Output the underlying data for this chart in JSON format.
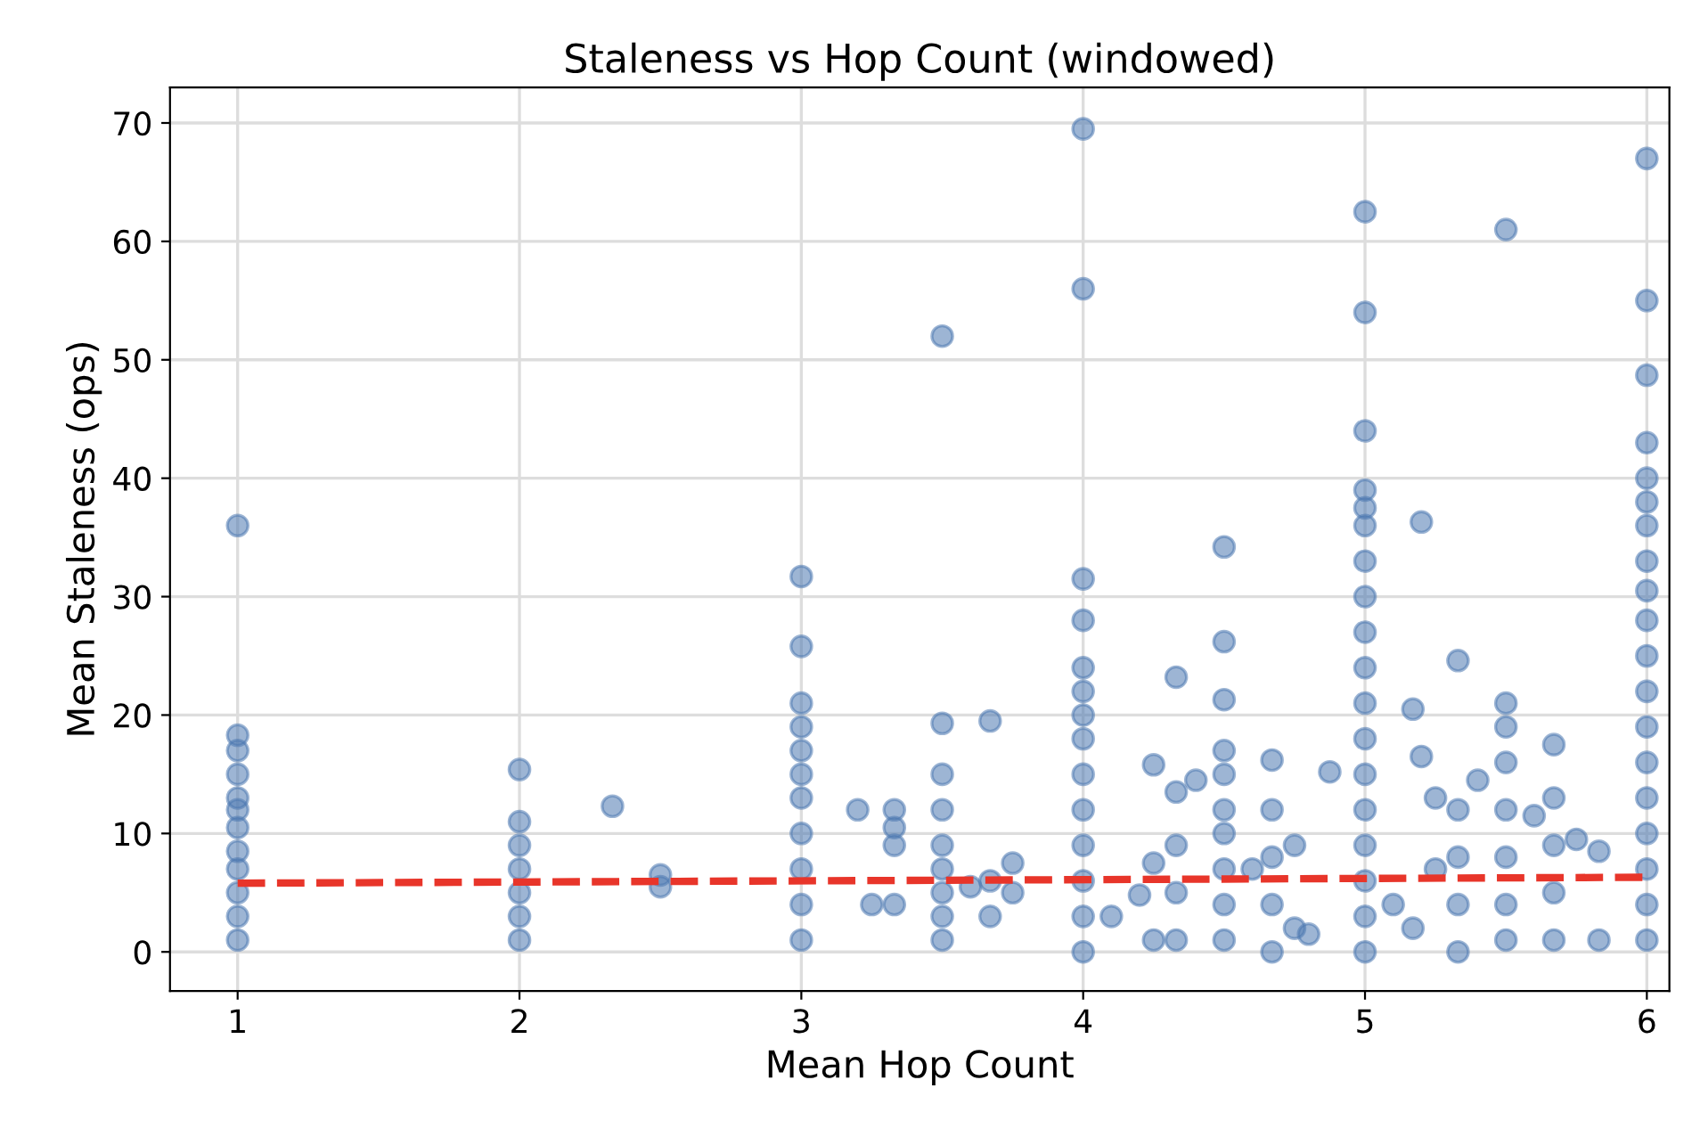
{
  "chart_data": {
    "type": "scatter",
    "title": "Staleness vs Hop Count (windowed)",
    "xlabel": "Mean Hop Count",
    "ylabel": "Mean Staleness (ops)",
    "xlim": [
      0.76,
      6.08
    ],
    "ylim": [
      -3.3,
      73
    ],
    "xticks": [
      1,
      2,
      3,
      4,
      5,
      6
    ],
    "yticks": [
      0,
      10,
      20,
      30,
      40,
      50,
      60,
      70
    ],
    "grid": true,
    "marker": "circle",
    "series": [
      {
        "color": "#4c78b0",
        "x": [
          1,
          1,
          1,
          1,
          1,
          1,
          1,
          1,
          1,
          1,
          1,
          1,
          2,
          2,
          2,
          2,
          2,
          2,
          2,
          2.33,
          2.5,
          2.5,
          3,
          3,
          3,
          3,
          3,
          3,
          3,
          3,
          3,
          3,
          3,
          3.2,
          3.25,
          3.33,
          3.33,
          3.33,
          3.33,
          3.5,
          3.5,
          3.5,
          3.5,
          3.5,
          3.5,
          3.5,
          3.5,
          3.5,
          3.6,
          3.67,
          3.67,
          3.67,
          3.75,
          3.75,
          4,
          4,
          4,
          4,
          4,
          4,
          4,
          4,
          4,
          4,
          4,
          4,
          4,
          4,
          4.1,
          4.2,
          4.25,
          4.25,
          4.25,
          4.33,
          4.33,
          4.33,
          4.33,
          4.33,
          4.4,
          4.5,
          4.5,
          4.5,
          4.5,
          4.5,
          4.5,
          4.5,
          4.5,
          4.5,
          4.5,
          4.6,
          4.67,
          4.67,
          4.67,
          4.67,
          4.67,
          4.75,
          4.75,
          4.8,
          4.875,
          5,
          5,
          5,
          5,
          5,
          5,
          5,
          5,
          5,
          5,
          5,
          5,
          5,
          5,
          5,
          5,
          5,
          5,
          5.1,
          5.17,
          5.17,
          5.2,
          5.2,
          5.25,
          5.25,
          5.33,
          5.33,
          5.33,
          5.33,
          5.33,
          5.4,
          5.5,
          5.5,
          5.5,
          5.5,
          5.5,
          5.5,
          5.5,
          5.5,
          5.6,
          5.67,
          5.67,
          5.67,
          5.67,
          5.67,
          5.75,
          5.83,
          5.83,
          6,
          6,
          6,
          6,
          6,
          6,
          6,
          6,
          6,
          6,
          6,
          6,
          6,
          6,
          6,
          6,
          6,
          6,
          6
        ],
        "values": [
          1,
          3,
          5,
          7,
          8.5,
          10.5,
          12,
          13,
          15,
          17,
          18.3,
          36,
          1,
          3,
          5,
          7,
          9,
          11,
          15.4,
          12.3,
          5.5,
          6.5,
          1,
          4,
          7,
          10,
          13,
          15,
          17,
          19,
          21,
          25.8,
          31.7,
          12,
          4,
          12,
          10.5,
          9,
          4,
          1,
          3,
          5,
          7,
          9,
          12,
          15,
          19.3,
          52,
          5.5,
          3,
          6,
          19.5,
          5,
          7.5,
          0,
          3,
          6,
          9,
          12,
          15,
          18,
          20,
          22,
          24,
          28,
          31.5,
          56,
          69.5,
          3,
          4.8,
          1,
          7.5,
          15.8,
          1,
          5,
          9,
          13.5,
          23.2,
          14.5,
          1,
          4,
          7,
          10,
          12,
          15,
          17,
          21.3,
          26.2,
          34.2,
          7,
          0,
          4,
          8,
          12,
          16.2,
          2,
          9,
          1.5,
          15.2,
          0,
          3,
          6,
          9,
          12,
          15,
          18,
          21,
          24,
          27,
          30,
          33,
          36,
          37.5,
          39,
          44,
          54,
          62.5,
          4,
          20.5,
          2,
          36.3,
          16.5,
          7,
          13,
          0,
          4,
          8,
          12,
          24.6,
          14.5,
          1,
          4,
          8,
          12,
          16,
          19,
          21,
          61,
          11.5,
          1,
          5,
          9,
          13,
          17.5,
          9.5,
          1,
          8.5,
          1,
          4,
          7,
          10,
          13,
          16,
          19,
          22,
          25,
          28,
          30.5,
          33,
          36,
          38,
          40,
          43,
          48.7,
          55,
          67
        ]
      },
      {
        "type": "line",
        "color": "#e8352a",
        "line_style": "dashed",
        "marker": "none",
        "x": [
          1,
          6
        ],
        "values": [
          5.8,
          6.3
        ]
      }
    ]
  }
}
